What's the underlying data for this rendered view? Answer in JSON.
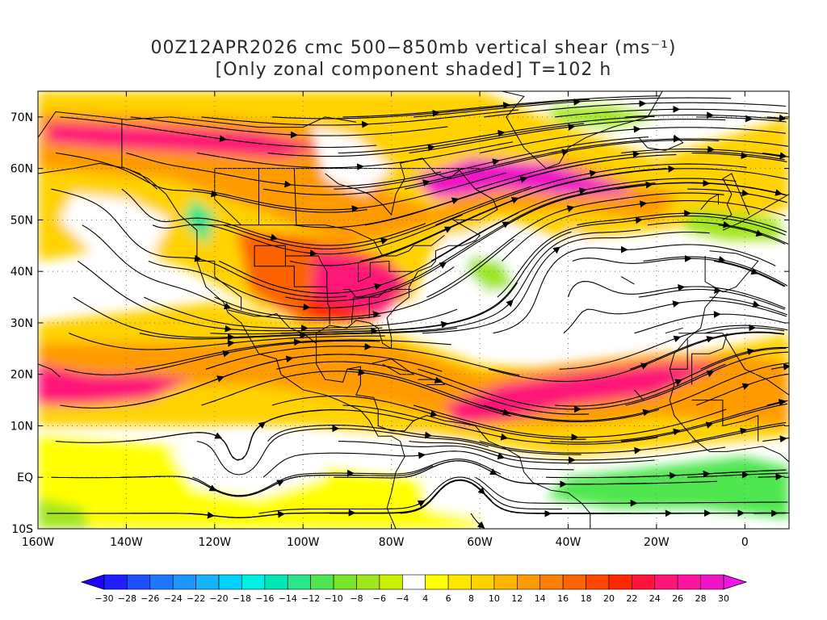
{
  "title": {
    "line1": "00Z12APR2026 cmc 500−850mb vertical shear (ms⁻¹)",
    "line2": "[Only zonal component shaded] T=102 h"
  },
  "map": {
    "lon_range": [
      -160,
      10
    ],
    "lat_range": [
      -10,
      75
    ],
    "x_ticks": [
      {
        "lon": -160,
        "label": "160W"
      },
      {
        "lon": -140,
        "label": "140W"
      },
      {
        "lon": -120,
        "label": "120W"
      },
      {
        "lon": -100,
        "label": "100W"
      },
      {
        "lon": -80,
        "label": "80W"
      },
      {
        "lon": -60,
        "label": "60W"
      },
      {
        "lon": -40,
        "label": "40W"
      },
      {
        "lon": -20,
        "label": "20W"
      },
      {
        "lon": 0,
        "label": "0"
      }
    ],
    "y_ticks": [
      {
        "lat": 70,
        "label": "70N"
      },
      {
        "lat": 60,
        "label": "60N"
      },
      {
        "lat": 50,
        "label": "50N"
      },
      {
        "lat": 40,
        "label": "40N"
      },
      {
        "lat": 30,
        "label": "30N"
      },
      {
        "lat": 20,
        "label": "20N"
      },
      {
        "lat": 10,
        "label": "10N"
      },
      {
        "lat": 0,
        "label": "EQ"
      },
      {
        "lat": -10,
        "label": "10S"
      }
    ],
    "grid_lines": "dotted"
  },
  "colorbar": {
    "labels": [
      "-30",
      "-28",
      "-26",
      "-24",
      "-22",
      "-20",
      "-18",
      "-16",
      "-14",
      "-12",
      "-10",
      "-8",
      "-6",
      "-4",
      "4",
      "6",
      "8",
      "10",
      "12",
      "14",
      "16",
      "18",
      "20",
      "22",
      "24",
      "26",
      "28",
      "30"
    ],
    "colors": [
      "#1e1eff",
      "#1e50ff",
      "#1e78ff",
      "#1e96ff",
      "#14b4ff",
      "#00d2ff",
      "#00f0e6",
      "#00e6b4",
      "#28e68c",
      "#50e650",
      "#78e628",
      "#a0e61e",
      "#c8f000",
      "#ffffff",
      "#ffff00",
      "#ffe600",
      "#ffd200",
      "#ffb400",
      "#ff9b00",
      "#ff7d00",
      "#ff6400",
      "#ff4600",
      "#ff2800",
      "#ff143c",
      "#ff1478",
      "#ff14a0",
      "#f014c8"
    ],
    "under_color": "#1e00ff",
    "over_color": "#f014e6"
  },
  "shade_colors": {
    "white": "#ffffff",
    "green_light": "#a0e61e",
    "green": "#50e650",
    "teal": "#28e68c",
    "yellow": "#ffff00",
    "gold": "#ffd200",
    "orange": "#ff9b00",
    "orange_dark": "#ff6400",
    "red": "#ff2800",
    "pink": "#ff1478",
    "magenta": "#f014c8"
  }
}
